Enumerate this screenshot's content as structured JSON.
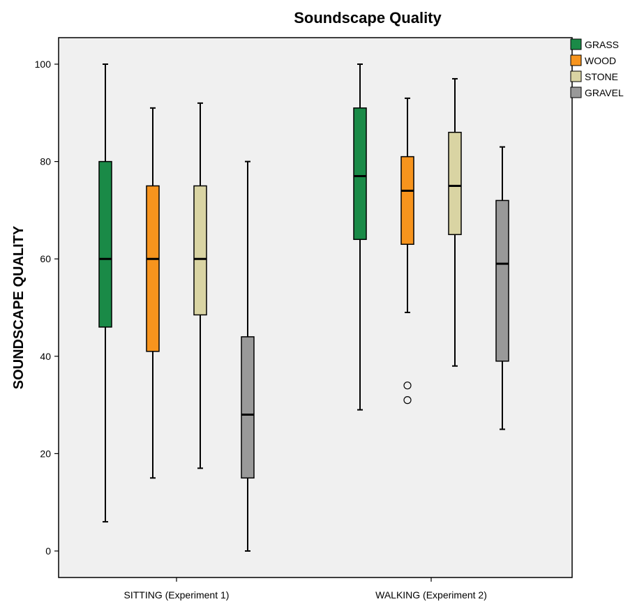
{
  "chart_data": {
    "type": "boxplot",
    "title": "Soundscape Quality",
    "xlabel": "",
    "ylabel": "SOUNDSCAPE QUALITY",
    "ylim": [
      -5,
      105
    ],
    "yticks": [
      0,
      20,
      40,
      60,
      80,
      100
    ],
    "categories": [
      "SITTING (Experiment 1)",
      "WALKING (Experiment 2)"
    ],
    "legend_position": "right",
    "grid": false,
    "plot_background": "#f0f0f0",
    "series": [
      {
        "name": "GRASS",
        "color": "#1a8a47",
        "boxes": [
          {
            "min": 6,
            "q1": 46,
            "median": 60,
            "q3": 80,
            "max": 100,
            "outliers": []
          },
          {
            "min": 29,
            "q1": 64,
            "median": 77,
            "q3": 91,
            "max": 100,
            "outliers": []
          }
        ]
      },
      {
        "name": "WOOD",
        "color": "#f7941d",
        "boxes": [
          {
            "min": 15,
            "q1": 41,
            "median": 60,
            "q3": 75,
            "max": 91,
            "outliers": []
          },
          {
            "min": 49,
            "q1": 63,
            "median": 74,
            "q3": 81,
            "max": 93,
            "outliers": [
              34,
              31
            ]
          }
        ]
      },
      {
        "name": "STONE",
        "color": "#d9d4a3",
        "boxes": [
          {
            "min": 17,
            "q1": 48.5,
            "median": 60,
            "q3": 75,
            "max": 92,
            "outliers": []
          },
          {
            "min": 38,
            "q1": 65,
            "median": 75,
            "q3": 86,
            "max": 97,
            "outliers": []
          }
        ]
      },
      {
        "name": "GRAVEL",
        "color": "#999999",
        "boxes": [
          {
            "min": 0,
            "q1": 15,
            "median": 28,
            "q3": 44,
            "max": 80,
            "outliers": []
          },
          {
            "min": 25,
            "q1": 39,
            "median": 59,
            "q3": 72,
            "max": 83,
            "outliers": []
          }
        ]
      }
    ]
  }
}
